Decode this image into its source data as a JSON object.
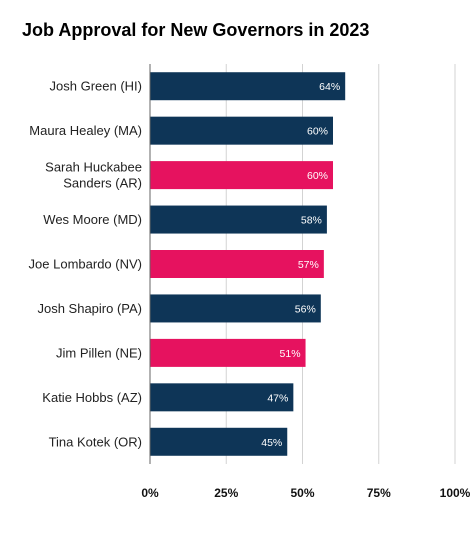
{
  "title": "Job Approval for New Governors in 2023",
  "colors": {
    "dem": "#0e3557",
    "rep": "#e6125f",
    "grid": "#d3d3d3",
    "axis": "#666666"
  },
  "chart_data": {
    "type": "bar",
    "orientation": "horizontal",
    "title": "Job Approval for New Governors in 2023",
    "xlabel": "",
    "ylabel": "",
    "xlim": [
      0,
      100
    ],
    "grid": true,
    "x_ticks": [
      0,
      25,
      50,
      75,
      100
    ],
    "x_tick_labels": [
      "0%",
      "25%",
      "50%",
      "75%",
      "100%"
    ],
    "categories": [
      [
        "Josh Green (HI)"
      ],
      [
        "Maura Healey (MA)"
      ],
      [
        "Sarah Huckabee",
        "Sanders (AR)"
      ],
      [
        "Wes Moore (MD)"
      ],
      [
        "Joe Lombardo (NV)"
      ],
      [
        "Josh Shapiro (PA)"
      ],
      [
        "Jim Pillen (NE)"
      ],
      [
        "Katie Hobbs (AZ)"
      ],
      [
        "Tina Kotek (OR)"
      ]
    ],
    "values": [
      64,
      60,
      60,
      58,
      57,
      56,
      51,
      47,
      45
    ],
    "value_labels": [
      "64%",
      "60%",
      "60%",
      "58%",
      "57%",
      "56%",
      "51%",
      "47%",
      "45%"
    ],
    "bar_colors": [
      "#0e3557",
      "#0e3557",
      "#e6125f",
      "#0e3557",
      "#e6125f",
      "#0e3557",
      "#e6125f",
      "#0e3557",
      "#0e3557"
    ]
  }
}
